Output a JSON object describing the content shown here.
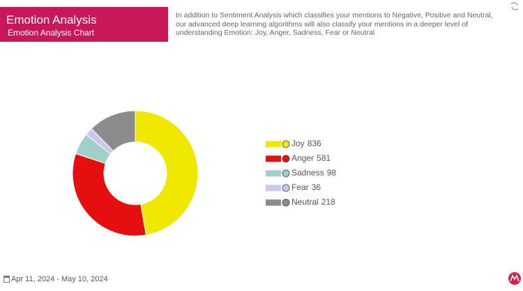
{
  "header": {
    "title": "Emotion Analysis",
    "subtitle": "Emotion Analysis Chart"
  },
  "description": "In addition to Sentiment Analysis which classifies your mentions to Negative, Positive and Neutral, our advanced deep learning algorithms will also classify your mentions in a deeper level of understanding Emotion: Joy, Anger, Sadness, Fear or Neutral",
  "date_range": "Apr 11, 2024 - May 10, 2024",
  "chart_data": {
    "type": "donut",
    "categories": [
      "Joy",
      "Anger",
      "Sadness",
      "Fear",
      "Neutral"
    ],
    "values": [
      836,
      581,
      98,
      36,
      218
    ],
    "colors": [
      "#f0e800",
      "#e50f0f",
      "#a3cfc9",
      "#c9c9ef",
      "#8c8c8c"
    ]
  }
}
